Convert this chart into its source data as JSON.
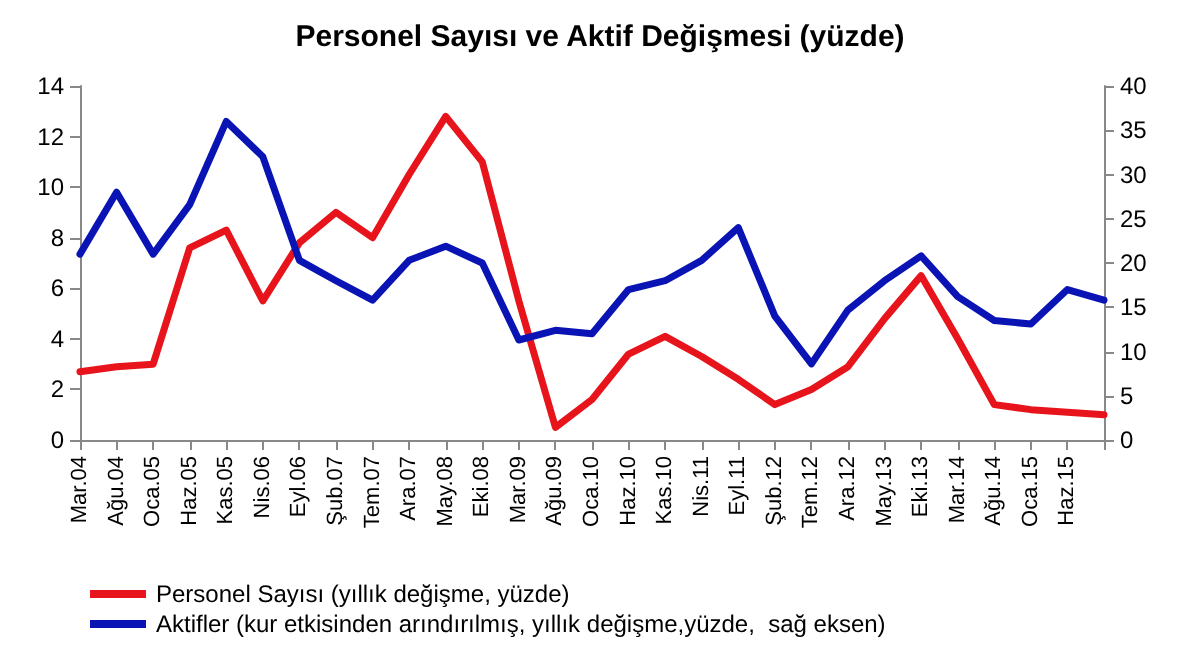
{
  "chart_data": {
    "type": "line",
    "title": "Personel Sayısı ve Aktif Değişmesi (yüzde)",
    "categories": [
      "Mar.04",
      "Ağu.04",
      "Oca.05",
      "Haz.05",
      "Kas.05",
      "Nis.06",
      "Eyl.06",
      "Şub.07",
      "Tem.07",
      "Ara.07",
      "May.08",
      "Eki.08",
      "Mar.09",
      "Ağu.09",
      "Oca.10",
      "Haz.10",
      "Kas.10",
      "Nis.11",
      "Eyl.11",
      "Şub.12",
      "Tem.12",
      "Ara.12",
      "May.13",
      "Eki.13",
      "Mar.14",
      "Ağu.14",
      "Oca.15",
      "Haz.15",
      null
    ],
    "series": [
      {
        "name": "Personel Sayısı (yıllık değişme, yüzde)",
        "color": "#e8141c",
        "values": [
          2.7,
          2.9,
          3.0,
          7.6,
          8.3,
          5.5,
          7.8,
          9.0,
          8.0,
          10.5,
          12.8,
          11.0,
          5.5,
          0.5,
          1.6,
          3.4,
          4.1,
          3.3,
          2.4,
          1.4,
          2.0,
          2.9,
          4.8,
          6.5,
          4.0,
          1.4,
          1.2,
          1.1,
          1.0
        ]
      },
      {
        "name": "Aktifler (kur etkisinden arındırılmış, yıllık değişme,yüzde,  sağ eksen)",
        "color": "#0a14b4",
        "axis": "y2",
        "values": [
          21,
          28,
          21,
          26.6,
          36,
          32,
          20.3,
          18,
          15.8,
          20.3,
          21.9,
          20,
          11.3,
          12.4,
          12,
          17,
          18,
          20.3,
          24,
          14,
          8.6,
          14.7,
          18,
          20.8,
          16.2,
          13.5,
          13.1,
          17,
          15.8
        ]
      }
    ],
    "ylim": [
      0,
      14
    ],
    "yticks": [
      0,
      2,
      4,
      6,
      8,
      10,
      12,
      14
    ],
    "y2lim": [
      0,
      40
    ],
    "y2ticks": [
      0,
      5,
      10,
      15,
      20,
      25,
      30,
      35,
      40
    ],
    "legend": "bottom",
    "grid": false,
    "marker": "none",
    "line_style": "solid"
  }
}
